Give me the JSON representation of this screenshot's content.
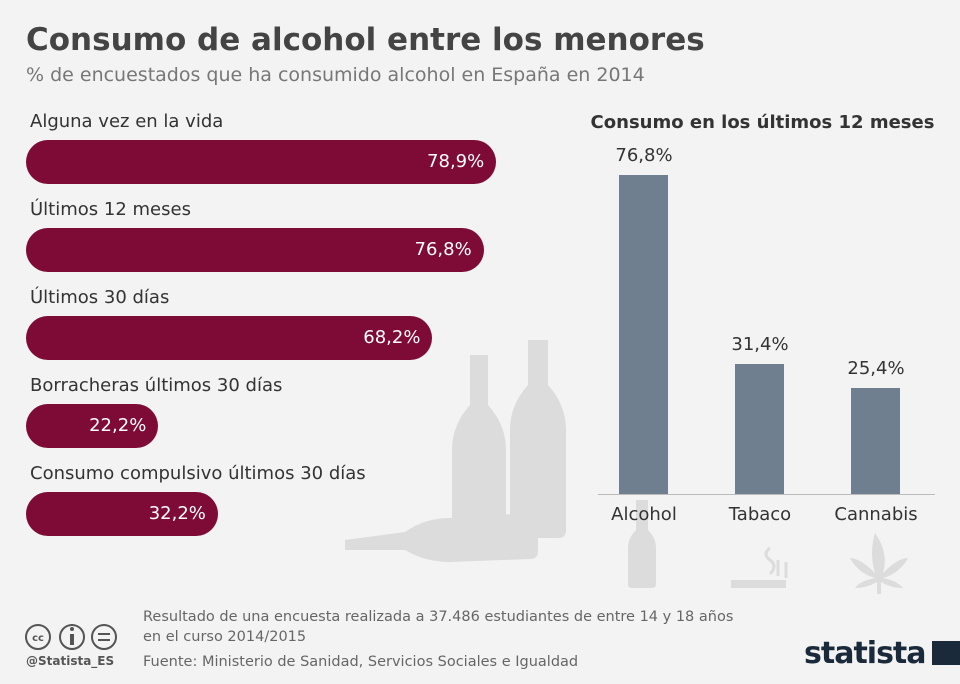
{
  "header": {
    "title": "Consumo de alcohol entre los menores",
    "subtitle": "% de encuestados que ha consumido alcohol en España en 2014"
  },
  "chart_data": [
    {
      "type": "bar",
      "orientation": "horizontal",
      "categories": [
        "Alguna vez en la vida",
        "Últimos 12 meses",
        "Últimos 30 días",
        "Borracheras últimos 30 días",
        "Consumo compulsivo últimos 30 días"
      ],
      "values": [
        78.9,
        76.8,
        68.2,
        22.2,
        32.2
      ],
      "value_labels": [
        "78,9%",
        "76,8%",
        "68,2%",
        "22,2%",
        "32,2%"
      ],
      "color": "#7e0b36",
      "unit": "%"
    },
    {
      "type": "bar",
      "orientation": "vertical",
      "title": "Consumo en los últimos 12 meses",
      "categories": [
        "Alcohol",
        "Tabaco",
        "Cannabis"
      ],
      "values": [
        76.8,
        31.4,
        25.4
      ],
      "value_labels": [
        "76,8%",
        "31,4%",
        "25,4%"
      ],
      "color": "#6f7f8f",
      "unit": "%"
    }
  ],
  "footer": {
    "note_line1": "Resultado de una encuesta realizada a 37.486 estudiantes de entre 14 y 18 años",
    "note_line2": "en el curso 2014/2015",
    "source": "Fuente: Ministerio de Sanidad, Servicios Sociales e Igualdad",
    "handle": "@Statista_ES",
    "logo": "statista",
    "license_icons": [
      "cc",
      "by",
      "nd"
    ]
  }
}
